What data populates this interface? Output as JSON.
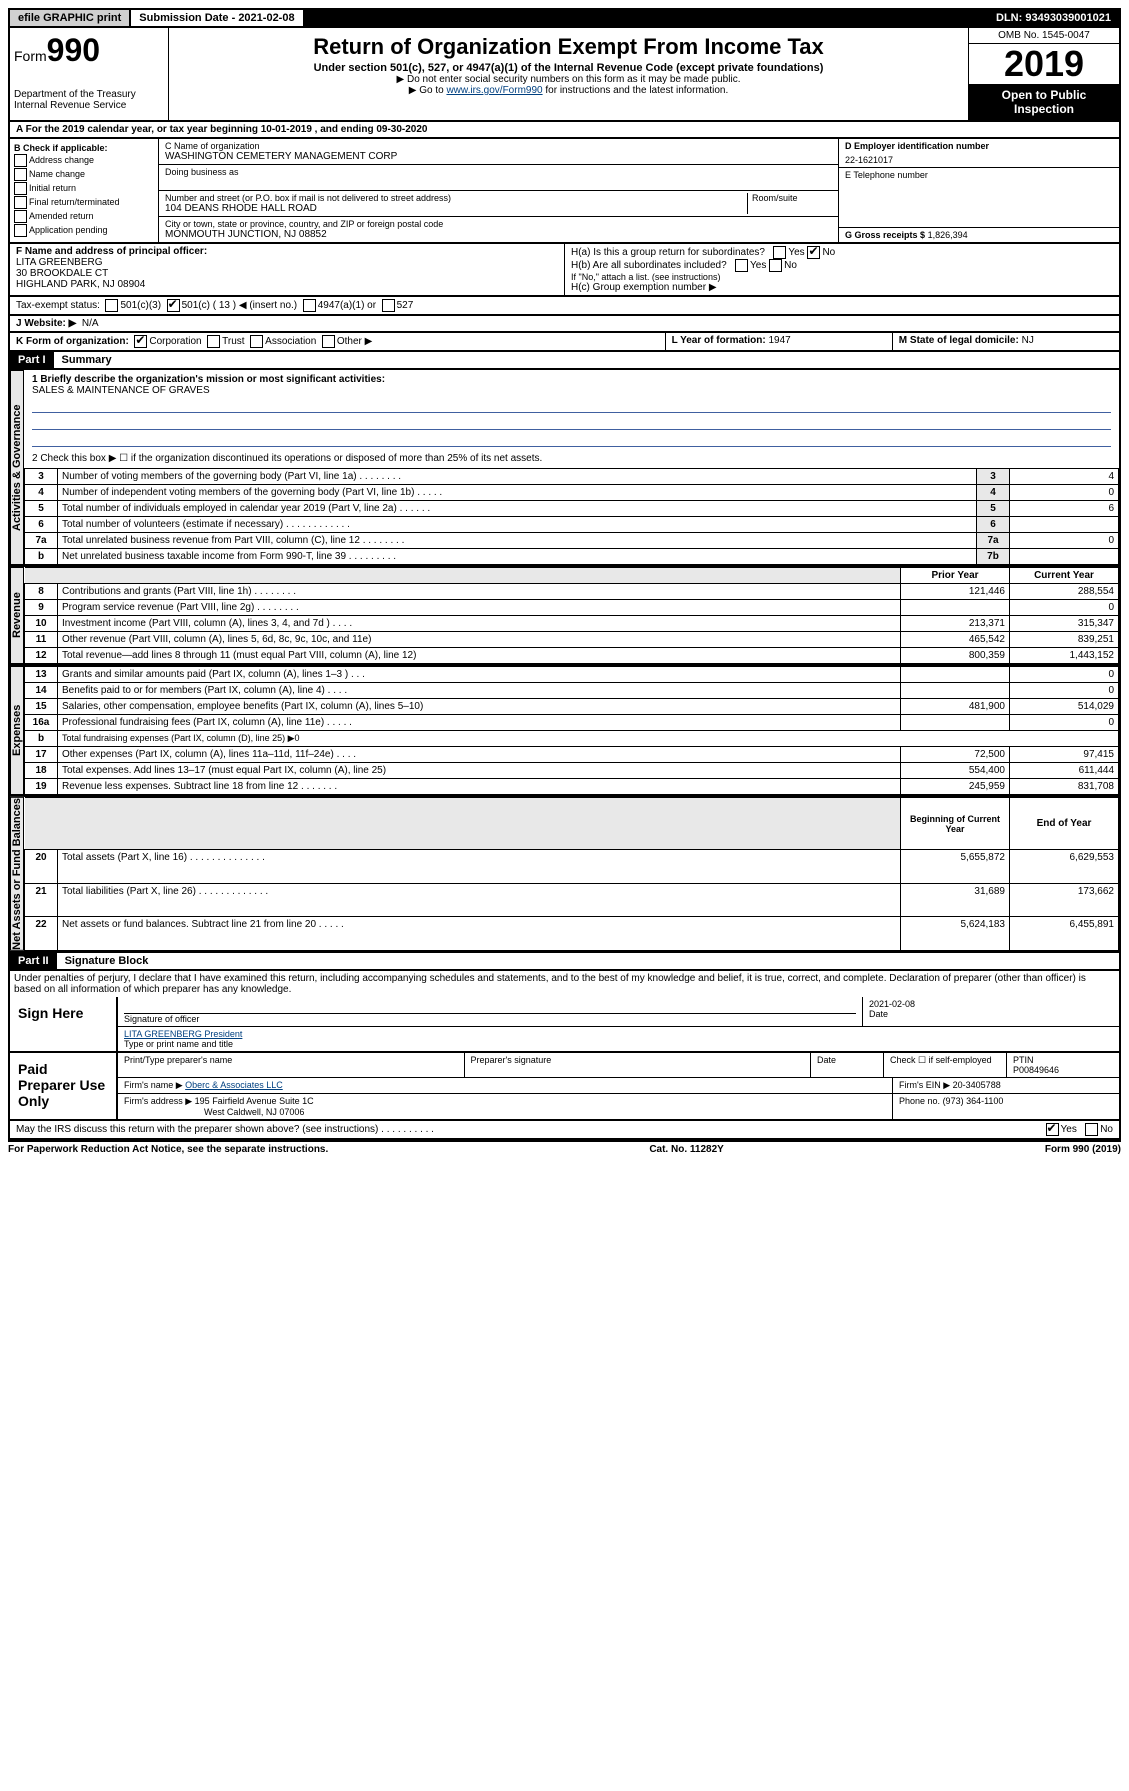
{
  "topbar": {
    "efile": "efile GRAPHIC print",
    "submission": "Submission Date - 2021-02-08",
    "dln": "DLN: 93493039001021"
  },
  "header": {
    "form_label": "Form",
    "form_no": "990",
    "dept1": "Department of the Treasury",
    "dept2": "Internal Revenue Service",
    "title": "Return of Organization Exempt From Income Tax",
    "subtitle": "Under section 501(c), 527, or 4947(a)(1) of the Internal Revenue Code (except private foundations)",
    "note1": "▶ Do not enter social security numbers on this form as it may be made public.",
    "note2_pre": "▶ Go to ",
    "note2_link": "www.irs.gov/Form990",
    "note2_post": " for instructions and the latest information.",
    "omb": "OMB No. 1545-0047",
    "year": "2019",
    "open": "Open to Public Inspection"
  },
  "line_a": "For the 2019 calendar year, or tax year beginning 10-01-2019    , and ending 09-30-2020",
  "box_b": {
    "label": "B Check if applicable:",
    "opts": [
      "Address change",
      "Name change",
      "Initial return",
      "Final return/terminated",
      "Amended return",
      "Application pending"
    ]
  },
  "box_c": {
    "name_label": "C Name of organization",
    "name": "WASHINGTON CEMETERY MANAGEMENT CORP",
    "dba_label": "Doing business as",
    "addr_label": "Number and street (or P.O. box if mail is not delivered to street address)",
    "room_label": "Room/suite",
    "addr": "104 DEANS RHODE HALL ROAD",
    "city_label": "City or town, state or province, country, and ZIP or foreign postal code",
    "city": "MONMOUTH JUNCTION, NJ  08852"
  },
  "box_d": {
    "label": "D Employer identification number",
    "val": "22-1621017"
  },
  "box_e": {
    "label": "E Telephone number"
  },
  "box_g": {
    "label": "G Gross receipts $",
    "val": "1,826,394"
  },
  "box_f": {
    "label": "F Name and address of principal officer:",
    "name": "LITA GREENBERG",
    "addr1": "30 BROOKDALE CT",
    "addr2": "HIGHLAND PARK, NJ  08904"
  },
  "box_h": {
    "a": "H(a)  Is this a group return for subordinates?",
    "b": "H(b)  Are all subordinates included?",
    "note": "If \"No,\" attach a list. (see instructions)",
    "c": "H(c)  Group exemption number ▶"
  },
  "tax_status": {
    "label": "Tax-exempt status:",
    "o1": "501(c)(3)",
    "o2": "501(c) ( 13 ) ◀ (insert no.)",
    "o3": "4947(a)(1) or",
    "o4": "527"
  },
  "website": {
    "label": "J   Website: ▶",
    "val": "N/A"
  },
  "box_k": {
    "label": "K Form of organization:",
    "o1": "Corporation",
    "o2": "Trust",
    "o3": "Association",
    "o4": "Other ▶"
  },
  "box_l": {
    "label": "L Year of formation:",
    "val": "1947"
  },
  "box_m": {
    "label": "M State of legal domicile:",
    "val": "NJ"
  },
  "part1": {
    "header": "Part I",
    "title": "Summary",
    "q1": "1  Briefly describe the organization's mission or most significant activities:",
    "mission": "SALES & MAINTENANCE OF GRAVES",
    "q2": "2   Check this box ▶ ☐  if the organization discontinued its operations or disposed of more than 25% of its net assets."
  },
  "sidelabels": {
    "gov": "Activities & Governance",
    "rev": "Revenue",
    "exp": "Expenses",
    "net": "Net Assets or Fund Balances"
  },
  "gov_rows": [
    {
      "n": "3",
      "t": "Number of voting members of the governing body (Part VI, line 1a)   .   .   .   .   .   .   .   .",
      "c": "3",
      "v": "4"
    },
    {
      "n": "4",
      "t": "Number of independent voting members of the governing body (Part VI, line 1b)   .   .   .   .   .",
      "c": "4",
      "v": "0"
    },
    {
      "n": "5",
      "t": "Total number of individuals employed in calendar year 2019 (Part V, line 2a)   .   .   .   .   .   .",
      "c": "5",
      "v": "6"
    },
    {
      "n": "6",
      "t": "Total number of volunteers (estimate if necessary)   .   .   .   .   .   .   .   .   .   .   .   .",
      "c": "6",
      "v": ""
    },
    {
      "n": "7a",
      "t": "Total unrelated business revenue from Part VIII, column (C), line 12   .   .   .   .   .   .   .   .",
      "c": "7a",
      "v": "0"
    },
    {
      "n": "b",
      "t": "Net unrelated business taxable income from Form 990-T, line 39   .   .   .   .   .   .   .   .   .",
      "c": "7b",
      "v": ""
    }
  ],
  "col_headers": {
    "prior": "Prior Year",
    "current": "Current Year"
  },
  "rev_rows": [
    {
      "n": "8",
      "t": "Contributions and grants (Part VIII, line 1h)   .   .   .   .   .   .   .   .",
      "p": "121,446",
      "c": "288,554"
    },
    {
      "n": "9",
      "t": "Program service revenue (Part VIII, line 2g)   .   .   .   .   .   .   .   .",
      "p": "",
      "c": "0"
    },
    {
      "n": "10",
      "t": "Investment income (Part VIII, column (A), lines 3, 4, and 7d )   .   .   .   .",
      "p": "213,371",
      "c": "315,347"
    },
    {
      "n": "11",
      "t": "Other revenue (Part VIII, column (A), lines 5, 6d, 8c, 9c, 10c, and 11e)",
      "p": "465,542",
      "c": "839,251"
    },
    {
      "n": "12",
      "t": "Total revenue—add lines 8 through 11 (must equal Part VIII, column (A), line 12)",
      "p": "800,359",
      "c": "1,443,152"
    }
  ],
  "exp_rows": [
    {
      "n": "13",
      "t": "Grants and similar amounts paid (Part IX, column (A), lines 1–3 )   .   .   .",
      "p": "",
      "c": "0"
    },
    {
      "n": "14",
      "t": "Benefits paid to or for members (Part IX, column (A), line 4)   .   .   .   .",
      "p": "",
      "c": "0"
    },
    {
      "n": "15",
      "t": "Salaries, other compensation, employee benefits (Part IX, column (A), lines 5–10)",
      "p": "481,900",
      "c": "514,029"
    },
    {
      "n": "16a",
      "t": "Professional fundraising fees (Part IX, column (A), line 11e)   .   .   .   .   .",
      "p": "",
      "c": "0"
    },
    {
      "n": "b",
      "t": "Total fundraising expenses (Part IX, column (D), line 25) ▶0",
      "p": null,
      "c": null
    },
    {
      "n": "17",
      "t": "Other expenses (Part IX, column (A), lines 11a–11d, 11f–24e)   .   .   .   .",
      "p": "72,500",
      "c": "97,415"
    },
    {
      "n": "18",
      "t": "Total expenses. Add lines 13–17 (must equal Part IX, column (A), line 25)",
      "p": "554,400",
      "c": "611,444"
    },
    {
      "n": "19",
      "t": "Revenue less expenses. Subtract line 18 from line 12   .   .   .   .   .   .   .",
      "p": "245,959",
      "c": "831,708"
    }
  ],
  "net_headers": {
    "begin": "Beginning of Current Year",
    "end": "End of Year"
  },
  "net_rows": [
    {
      "n": "20",
      "t": "Total assets (Part X, line 16)   .   .   .   .   .   .   .   .   .   .   .   .   .   .",
      "p": "5,655,872",
      "c": "6,629,553"
    },
    {
      "n": "21",
      "t": "Total liabilities (Part X, line 26)   .   .   .   .   .   .   .   .   .   .   .   .   .",
      "p": "31,689",
      "c": "173,662"
    },
    {
      "n": "22",
      "t": "Net assets or fund balances. Subtract line 21 from line 20   .   .   .   .   .",
      "p": "5,624,183",
      "c": "6,455,891"
    }
  ],
  "part2": {
    "header": "Part II",
    "title": "Signature Block",
    "perjury": "Under penalties of perjury, I declare that I have examined this return, including accompanying schedules and statements, and to the best of my knowledge and belief, it is true, correct, and complete. Declaration of preparer (other than officer) is based on all information of which preparer has any knowledge."
  },
  "sign": {
    "here": "Sign Here",
    "sig_label": "Signature of officer",
    "date": "2021-02-08",
    "date_label": "Date",
    "name": "LITA GREENBERG President",
    "name_label": "Type or print name and title"
  },
  "paid": {
    "label": "Paid Preparer Use Only",
    "h1": "Print/Type preparer's name",
    "h2": "Preparer's signature",
    "h3": "Date",
    "h4_a": "Check ☐ if self-employed",
    "h5": "PTIN",
    "ptin": "P00849646",
    "firm_name_label": "Firm's name    ▶",
    "firm_name": "Oberc & Associates LLC",
    "firm_ein_label": "Firm's EIN ▶",
    "firm_ein": "20-3405788",
    "firm_addr_label": "Firm's address ▶",
    "firm_addr1": "195 Fairfield Avenue Suite 1C",
    "firm_addr2": "West Caldwell, NJ  07006",
    "phone_label": "Phone no.",
    "phone": "(973) 364-1100"
  },
  "discuss": "May the IRS discuss this return with the preparer shown above? (see instructions)   .   .   .   .   .   .   .   .   .   .",
  "footer": {
    "left": "For Paperwork Reduction Act Notice, see the separate instructions.",
    "mid": "Cat. No. 11282Y",
    "right": "Form 990 (2019)"
  },
  "yes": "Yes",
  "no": "No"
}
